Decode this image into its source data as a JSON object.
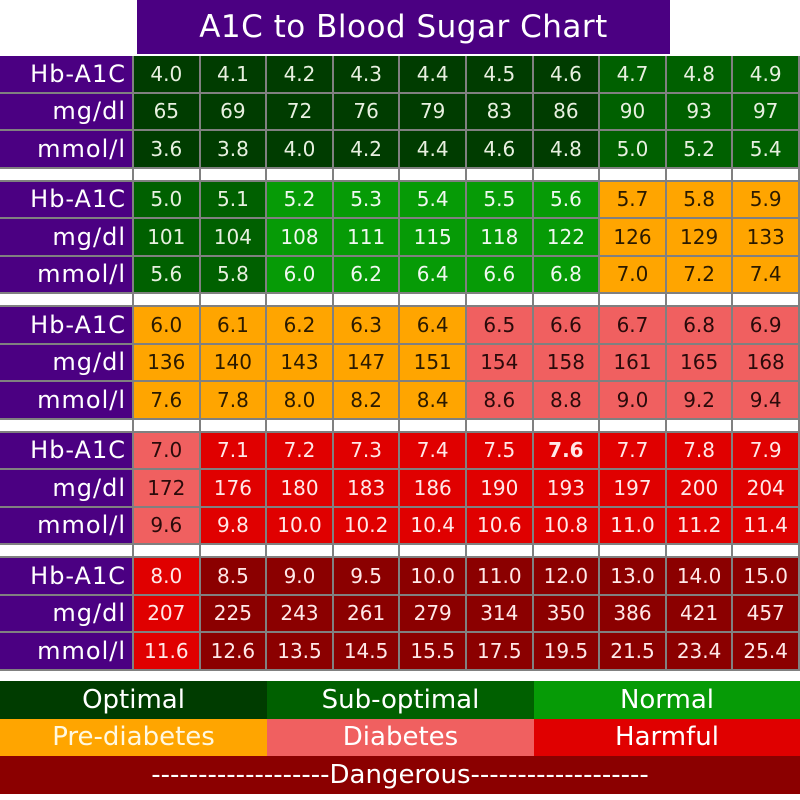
{
  "chart_data": {
    "type": "table",
    "title": "A1C to Blood Sugar Chart",
    "row_labels": [
      "Hb-A1C",
      "mg/dl",
      "mmol/l"
    ],
    "blocks": [
      {
        "hba1c": [
          "4.0",
          "4.1",
          "4.2",
          "4.3",
          "4.4",
          "4.5",
          "4.6",
          "4.7",
          "4.8",
          "4.9"
        ],
        "mgdl": [
          "65",
          "69",
          "72",
          "76",
          "79",
          "83",
          "86",
          "90",
          "93",
          "97"
        ],
        "mmol": [
          "3.6",
          "3.8",
          "4.0",
          "4.2",
          "4.4",
          "4.6",
          "4.8",
          "5.0",
          "5.2",
          "5.4"
        ],
        "category": [
          "optimal",
          "optimal",
          "optimal",
          "optimal",
          "optimal",
          "optimal",
          "optimal",
          "suboptimal",
          "suboptimal",
          "suboptimal"
        ]
      },
      {
        "hba1c": [
          "5.0",
          "5.1",
          "5.2",
          "5.3",
          "5.4",
          "5.5",
          "5.6",
          "5.7",
          "5.8",
          "5.9"
        ],
        "mgdl": [
          "101",
          "104",
          "108",
          "111",
          "115",
          "118",
          "122",
          "126",
          "129",
          "133"
        ],
        "mmol": [
          "5.6",
          "5.8",
          "6.0",
          "6.2",
          "6.4",
          "6.6",
          "6.8",
          "7.0",
          "7.2",
          "7.4"
        ],
        "category": [
          "suboptimal",
          "suboptimal",
          "normal",
          "normal",
          "normal",
          "normal",
          "normal",
          "prediabetes",
          "prediabetes",
          "prediabetes"
        ]
      },
      {
        "hba1c": [
          "6.0",
          "6.1",
          "6.2",
          "6.3",
          "6.4",
          "6.5",
          "6.6",
          "6.7",
          "6.8",
          "6.9"
        ],
        "mgdl": [
          "136",
          "140",
          "143",
          "147",
          "151",
          "154",
          "158",
          "161",
          "165",
          "168"
        ],
        "mmol": [
          "7.6",
          "7.8",
          "8.0",
          "8.2",
          "8.4",
          "8.6",
          "8.8",
          "9.0",
          "9.2",
          "9.4"
        ],
        "category": [
          "prediabetes",
          "prediabetes",
          "prediabetes",
          "prediabetes",
          "prediabetes",
          "diabetes",
          "diabetes",
          "diabetes",
          "diabetes",
          "diabetes"
        ]
      },
      {
        "hba1c": [
          "7.0",
          "7.1",
          "7.2",
          "7.3",
          "7.4",
          "7.5",
          "7.6",
          "7.7",
          "7.8",
          "7.9"
        ],
        "mgdl": [
          "172",
          "176",
          "180",
          "183",
          "186",
          "190",
          "193",
          "197",
          "200",
          "204"
        ],
        "mmol": [
          "9.6",
          "9.8",
          "10.0",
          "10.2",
          "10.4",
          "10.6",
          "10.8",
          "11.0",
          "11.2",
          "11.4"
        ],
        "category": [
          "diabetes",
          "harmful",
          "harmful",
          "harmful",
          "harmful",
          "harmful",
          "harmful",
          "harmful",
          "harmful",
          "harmful"
        ]
      },
      {
        "hba1c": [
          "8.0",
          "8.5",
          "9.0",
          "9.5",
          "10.0",
          "11.0",
          "12.0",
          "13.0",
          "14.0",
          "15.0"
        ],
        "mgdl": [
          "207",
          "225",
          "243",
          "261",
          "279",
          "314",
          "350",
          "386",
          "421",
          "457"
        ],
        "mmol": [
          "11.6",
          "12.6",
          "13.5",
          "14.5",
          "15.5",
          "17.5",
          "19.5",
          "21.5",
          "23.4",
          "25.4"
        ],
        "category": [
          "harmful",
          "dangerous",
          "dangerous",
          "dangerous",
          "dangerous",
          "dangerous",
          "dangerous",
          "dangerous",
          "dangerous",
          "dangerous"
        ]
      }
    ],
    "legend": [
      {
        "label": "Optimal",
        "color": "#003c00"
      },
      {
        "label": "Sub-optimal",
        "color": "#006000"
      },
      {
        "label": "Normal",
        "color": "#069b06"
      },
      {
        "label": "Pre-diabetes",
        "color": "#ffa500"
      },
      {
        "label": "Diabetes",
        "color": "#f06060"
      },
      {
        "label": "Harmful",
        "color": "#e00000"
      },
      {
        "label": "Dangerous",
        "color": "#8b0000"
      }
    ]
  },
  "title": "A1C to Blood Sugar Chart",
  "labels": {
    "hba1c": "Hb-A1C",
    "mgdl": "mg/dl",
    "mmol": "mmol/l"
  },
  "legend": {
    "optimal": "Optimal",
    "suboptimal": "Sub-optimal",
    "normal": "Normal",
    "prediabetes": "Pre-diabetes",
    "diabetes": "Diabetes",
    "harmful": "Harmful",
    "dangerous": "-------------------Dangerous-------------------"
  },
  "colors": {
    "header_purple": "#4b0082",
    "grid_border": "#808080"
  }
}
